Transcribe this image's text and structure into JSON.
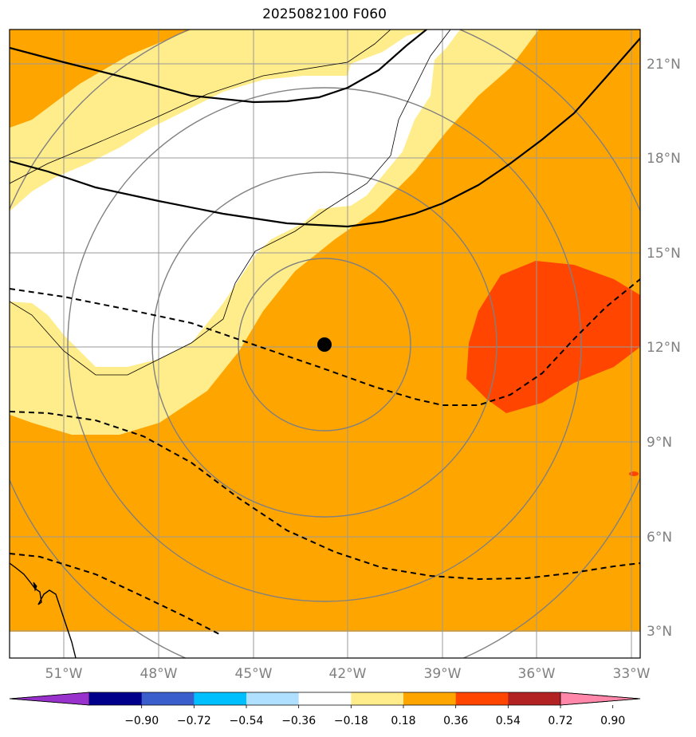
{
  "title": "2025082100 F060",
  "lat_labels": [
    "21°N",
    "18°N",
    "15°N",
    "12°N",
    "9°N",
    "6°N",
    "3°N"
  ],
  "lon_labels": [
    "51°W",
    "48°W",
    "45°W",
    "42°W",
    "39°W",
    "36°W",
    "33°W"
  ],
  "colorbar": {
    "ticks": [
      "−0.90",
      "−0.72",
      "−0.54",
      "−0.36",
      "−0.18",
      "0.18",
      "0.36",
      "0.54",
      "0.72",
      "0.90"
    ],
    "colors": [
      "#9932cc",
      "#00008b",
      "#3a5fcd",
      "#00bfff",
      "#b0e0ff",
      "#ffffff",
      "#ffec8b",
      "#ffa500",
      "#ff4500",
      "#b22222",
      "#ff88aa"
    ]
  },
  "storm_center": {
    "lon": -42.7,
    "lat": 12.1
  }
}
